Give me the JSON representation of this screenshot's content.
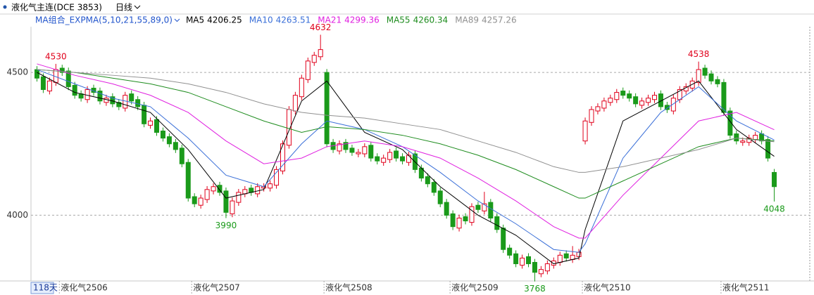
{
  "chart_data": {
    "type": "candlestick",
    "title": "液化气主连(DCE 3853)",
    "period": "日线",
    "indicator": "MA组合_EXPMA(5,10,21,55,89,0)",
    "days_label": "118天",
    "up_color": "#e0001b",
    "down_color": "#1a9a1a",
    "grid": true,
    "ylim": [
      3760,
      4670
    ],
    "yticks": [
      4000,
      4500
    ],
    "xlim": [
      0,
      118
    ],
    "xticks": [
      {
        "value": 4,
        "label": "液化气2506"
      },
      {
        "value": 25,
        "label": "液化气2507"
      },
      {
        "value": 46,
        "label": "液化气2508"
      },
      {
        "value": 66,
        "label": "液化气2509"
      },
      {
        "value": 87,
        "label": "液化气2510"
      },
      {
        "value": 109,
        "label": "液化气2511"
      }
    ],
    "candles": [
      [
        4510,
        4522,
        4468,
        4480
      ],
      [
        4485,
        4497,
        4428,
        4440
      ],
      [
        4435,
        4482,
        4423,
        4470
      ],
      [
        4465,
        4530,
        4453,
        4510
      ],
      [
        4515,
        4527,
        4488,
        4500
      ],
      [
        4505,
        4517,
        4438,
        4450
      ],
      [
        4455,
        4467,
        4408,
        4420
      ],
      [
        4425,
        4437,
        4398,
        4410
      ],
      [
        4405,
        4452,
        4393,
        4440
      ],
      [
        4445,
        4457,
        4418,
        4430
      ],
      [
        4435,
        4447,
        4388,
        4400
      ],
      [
        4395,
        4422,
        4383,
        4410
      ],
      [
        4415,
        4427,
        4378,
        4390
      ],
      [
        4395,
        4407,
        4368,
        4380
      ],
      [
        4375,
        4432,
        4363,
        4420
      ],
      [
        4425,
        4437,
        4388,
        4400
      ],
      [
        4405,
        4417,
        4368,
        4380
      ],
      [
        4385,
        4397,
        4308,
        4320
      ],
      [
        4315,
        4342,
        4303,
        4330
      ],
      [
        4335,
        4347,
        4278,
        4290
      ],
      [
        4295,
        4307,
        4258,
        4270
      ],
      [
        4275,
        4287,
        4238,
        4250
      ],
      [
        4255,
        4267,
        4218,
        4230
      ],
      [
        4235,
        4247,
        4168,
        4180
      ],
      [
        4185,
        4197,
        4048,
        4060
      ],
      [
        4065,
        4077,
        4028,
        4040
      ],
      [
        4035,
        4072,
        4023,
        4060
      ],
      [
        4055,
        4102,
        4043,
        4090
      ],
      [
        4085,
        4112,
        4073,
        4100
      ],
      [
        4105,
        4117,
        4068,
        4080
      ],
      [
        4085,
        4097,
        3990,
        4010
      ],
      [
        4005,
        4062,
        3993,
        4050
      ],
      [
        4045,
        4092,
        4033,
        4080
      ],
      [
        4075,
        4102,
        4063,
        4090
      ],
      [
        4095,
        4107,
        4068,
        4080
      ],
      [
        4075,
        4112,
        4063,
        4100
      ],
      [
        4095,
        4112,
        4083,
        4100
      ],
      [
        4095,
        4122,
        4083,
        4110
      ],
      [
        4105,
        4172,
        4093,
        4160
      ],
      [
        4155,
        4262,
        4143,
        4250
      ],
      [
        4245,
        4382,
        4233,
        4370
      ],
      [
        4365,
        4432,
        4353,
        4420
      ],
      [
        4415,
        4492,
        4403,
        4480
      ],
      [
        4475,
        4552,
        4463,
        4540
      ],
      [
        4535,
        4572,
        4523,
        4560
      ],
      [
        4555,
        4632,
        4543,
        4580
      ],
      [
        4500,
        4512,
        4238,
        4250
      ],
      [
        4255,
        4267,
        4218,
        4230
      ],
      [
        4225,
        4262,
        4213,
        4250
      ],
      [
        4255,
        4267,
        4218,
        4230
      ],
      [
        4235,
        4247,
        4208,
        4220
      ],
      [
        4215,
        4232,
        4203,
        4220
      ],
      [
        4215,
        4252,
        4203,
        4240
      ],
      [
        4245,
        4257,
        4188,
        4200
      ],
      [
        4205,
        4217,
        4178,
        4190
      ],
      [
        4185,
        4212,
        4173,
        4200
      ],
      [
        4195,
        4232,
        4183,
        4220
      ],
      [
        4225,
        4237,
        4188,
        4200
      ],
      [
        4205,
        4217,
        4178,
        4190
      ],
      [
        4185,
        4222,
        4173,
        4210
      ],
      [
        4215,
        4227,
        4148,
        4160
      ],
      [
        4165,
        4177,
        4118,
        4130
      ],
      [
        4135,
        4147,
        4098,
        4110
      ],
      [
        4115,
        4127,
        4068,
        4080
      ],
      [
        4085,
        4097,
        4028,
        4040
      ],
      [
        4045,
        4057,
        3988,
        4000
      ],
      [
        4005,
        4017,
        3948,
        3960
      ],
      [
        3955,
        4002,
        3943,
        3990
      ],
      [
        3995,
        4007,
        3968,
        3980
      ],
      [
        3975,
        4042,
        3963,
        4030
      ],
      [
        4035,
        4047,
        4008,
        4020
      ],
      [
        4015,
        4082,
        4003,
        4040
      ],
      [
        4045,
        4057,
        3978,
        3990
      ],
      [
        3995,
        4007,
        3938,
        3950
      ],
      [
        3955,
        3967,
        3868,
        3880
      ],
      [
        3885,
        3897,
        3848,
        3860
      ],
      [
        3865,
        3877,
        3818,
        3830
      ],
      [
        3825,
        3862,
        3813,
        3850
      ],
      [
        3855,
        3867,
        3818,
        3830
      ],
      [
        3835,
        3847,
        3768,
        3800
      ],
      [
        3795,
        3822,
        3783,
        3810
      ],
      [
        3805,
        3842,
        3793,
        3830
      ],
      [
        3825,
        3852,
        3813,
        3840
      ],
      [
        3835,
        3872,
        3823,
        3860
      ],
      [
        3865,
        3877,
        3838,
        3850
      ],
      [
        3845,
        3892,
        3833,
        3860
      ],
      [
        3855,
        3882,
        3843,
        3870
      ],
      [
        4260,
        4342,
        4248,
        4330
      ],
      [
        4325,
        4382,
        4313,
        4370
      ],
      [
        4365,
        4392,
        4353,
        4380
      ],
      [
        4375,
        4412,
        4363,
        4400
      ],
      [
        4395,
        4422,
        4383,
        4410
      ],
      [
        4405,
        4442,
        4393,
        4430
      ],
      [
        4435,
        4447,
        4408,
        4420
      ],
      [
        4425,
        4437,
        4398,
        4410
      ],
      [
        4415,
        4427,
        4378,
        4390
      ],
      [
        4385,
        4412,
        4373,
        4400
      ],
      [
        4395,
        4422,
        4383,
        4410
      ],
      [
        4405,
        4432,
        4393,
        4420
      ],
      [
        4425,
        4437,
        4368,
        4380
      ],
      [
        4385,
        4397,
        4358,
        4370
      ],
      [
        4365,
        4422,
        4353,
        4410
      ],
      [
        4405,
        4452,
        4393,
        4440
      ],
      [
        4435,
        4462,
        4423,
        4450
      ],
      [
        4445,
        4482,
        4433,
        4470
      ],
      [
        4465,
        4538,
        4453,
        4510
      ],
      [
        4515,
        4527,
        4478,
        4490
      ],
      [
        4495,
        4507,
        4458,
        4470
      ],
      [
        4475,
        4487,
        4448,
        4460
      ],
      [
        4465,
        4477,
        4348,
        4360
      ],
      [
        4365,
        4377,
        4268,
        4280
      ],
      [
        4285,
        4297,
        4248,
        4260
      ],
      [
        4255,
        4272,
        4243,
        4260
      ],
      [
        4255,
        4282,
        4243,
        4270
      ],
      [
        4265,
        4292,
        4253,
        4280
      ],
      [
        4285,
        4297,
        4248,
        4260
      ],
      [
        4265,
        4277,
        4188,
        4200
      ],
      [
        4150,
        4162,
        4048,
        4100
      ]
    ],
    "annotations": [
      {
        "x": 3,
        "value": 4530
      },
      {
        "x": 30,
        "value": 3990
      },
      {
        "x": 45,
        "value": 4632
      },
      {
        "x": 79,
        "value": 3768
      },
      {
        "x": 105,
        "value": 4538
      },
      {
        "x": 117,
        "value": 4048
      }
    ],
    "series": [
      {
        "name": "MA5",
        "color": "#000000",
        "x": [
          0,
          6,
          12,
          18,
          24,
          30,
          36,
          42,
          46,
          52,
          58,
          64,
          70,
          76,
          82,
          86,
          87,
          93,
          99,
          105,
          111,
          117
        ],
        "values": [
          4500,
          4430,
          4400,
          4360,
          4230,
          4060,
          4090,
          4400,
          4470,
          4290,
          4230,
          4100,
          4000,
          3930,
          3830,
          3850,
          3950,
          4330,
          4400,
          4470,
          4300,
          4206.25
        ]
      },
      {
        "name": "MA10",
        "color": "#3a6fd8",
        "x": [
          0,
          6,
          12,
          18,
          24,
          30,
          36,
          42,
          46,
          52,
          58,
          64,
          70,
          76,
          82,
          86,
          87,
          93,
          99,
          105,
          111,
          117
        ],
        "values": [
          4510,
          4460,
          4410,
          4380,
          4270,
          4140,
          4100,
          4250,
          4330,
          4300,
          4240,
          4150,
          4050,
          3970,
          3880,
          3870,
          3900,
          4200,
          4360,
          4450,
          4330,
          4263.51
        ]
      },
      {
        "name": "MA21",
        "color": "#e020e0",
        "x": [
          0,
          6,
          12,
          18,
          24,
          30,
          36,
          42,
          46,
          52,
          58,
          64,
          70,
          76,
          82,
          86,
          87,
          93,
          99,
          105,
          111,
          117
        ],
        "values": [
          4530,
          4490,
          4460,
          4420,
          4360,
          4260,
          4180,
          4200,
          4240,
          4260,
          4240,
          4200,
          4130,
          4050,
          3960,
          3920,
          3920,
          4070,
          4200,
          4330,
          4360,
          4299.36
        ]
      },
      {
        "name": "MA55",
        "color": "#1e8c1e",
        "x": [
          0,
          6,
          12,
          18,
          24,
          30,
          36,
          42,
          46,
          52,
          58,
          64,
          70,
          76,
          82,
          86,
          87,
          93,
          99,
          105,
          111,
          117
        ],
        "values": [
          4510,
          4500,
          4480,
          4460,
          4430,
          4380,
          4330,
          4290,
          4310,
          4300,
          4280,
          4250,
          4210,
          4160,
          4100,
          4060,
          4060,
          4120,
          4180,
          4240,
          4270,
          4260.34
        ]
      },
      {
        "name": "MA89",
        "color": "#909090",
        "x": [
          0,
          6,
          12,
          18,
          24,
          30,
          36,
          42,
          46,
          52,
          58,
          64,
          70,
          76,
          82,
          86,
          87,
          93,
          99,
          105,
          111,
          117
        ],
        "values": [
          4510,
          4500,
          4490,
          4480,
          4460,
          4430,
          4390,
          4360,
          4350,
          4340,
          4320,
          4300,
          4260,
          4220,
          4170,
          4150,
          4150,
          4170,
          4200,
          4230,
          4270,
          4257.26
        ]
      }
    ]
  }
}
